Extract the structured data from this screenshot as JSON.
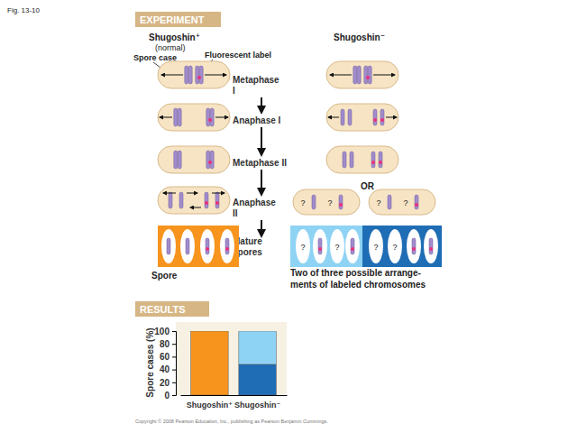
{
  "figure_label": "Fig. 13-10",
  "experiment": {
    "header": "EXPERIMENT",
    "normal": {
      "genotype": "Shugoshin⁺",
      "note": "(normal)"
    },
    "mutant": {
      "genotype": "Shugoshin⁻"
    },
    "callouts": [
      "Spore case",
      "Fluorescent label"
    ],
    "stages": [
      [
        "Metaphase",
        "I"
      ],
      [
        "Anaphase I"
      ],
      [
        "Metaphase II"
      ],
      [
        "Anaphase",
        "II"
      ],
      [
        "Mature",
        "spores"
      ]
    ],
    "or": "OR",
    "unknown": "?",
    "spore": "Spore",
    "caption": [
      "Two of three possible arrange-",
      "ments of labeled chromosomes"
    ]
  },
  "results": {
    "header": "RESULTS"
  },
  "chart_data": {
    "type": "bar",
    "stacked": true,
    "y_label": "Spore cases (%)",
    "categories": [
      "Shugoshin⁺",
      "Shugoshin⁻"
    ],
    "series": [
      {
        "colors": [
          "#f7941d",
          "#1f6db5"
        ],
        "values": [
          100,
          48
        ]
      },
      {
        "colors": [
          null,
          "#8fd3f4"
        ],
        "values": [
          null,
          52
        ]
      }
    ],
    "ylim": [
      0,
      100
    ],
    "yticks": [
      0,
      20,
      40,
      60,
      80,
      100
    ],
    "grid": false
  },
  "copyright": "Copyright © 2008 Pearson Education, Inc., publishing as Pearson Benjamin Cummings."
}
